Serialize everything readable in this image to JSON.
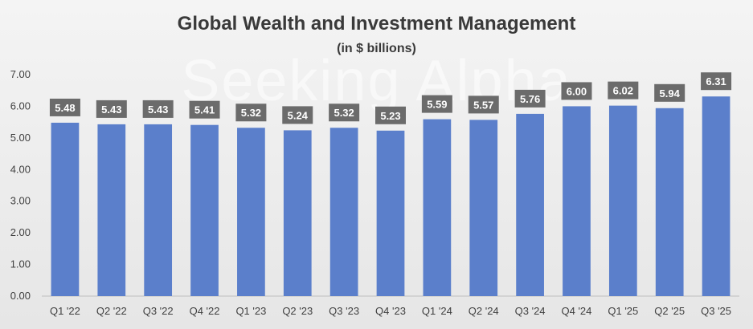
{
  "watermark": "Seeking Alpha",
  "chart_data": {
    "type": "bar",
    "title": "Global Wealth and Investment Management",
    "subtitle": "(in $ billions)",
    "xlabel": "",
    "ylabel": "",
    "categories": [
      "Q1 '22",
      "Q2 '22",
      "Q3 '22",
      "Q4 '22",
      "Q1 '23",
      "Q2 '23",
      "Q3 '23",
      "Q4 '23",
      "Q1 '24",
      "Q2 '24",
      "Q3 '24",
      "Q4 '24",
      "Q1 '25",
      "Q2 '25",
      "Q3 '25"
    ],
    "values": [
      5.48,
      5.43,
      5.43,
      5.41,
      5.32,
      5.24,
      5.32,
      5.23,
      5.59,
      5.57,
      5.76,
      6.0,
      6.02,
      5.94,
      6.31
    ],
    "value_labels": [
      "5.48",
      "5.43",
      "5.43",
      "5.41",
      "5.32",
      "5.24",
      "5.32",
      "5.23",
      "5.59",
      "5.57",
      "5.76",
      "6.00",
      "6.02",
      "5.94",
      "6.31"
    ],
    "y_ticks": [
      "0.00",
      "1.00",
      "2.00",
      "3.00",
      "4.00",
      "5.00",
      "6.00",
      "7.00"
    ],
    "ylim": [
      0,
      7
    ],
    "grid": false,
    "colors": {
      "bar": "#5b7fcb",
      "label_bg": "#6b6b6b"
    }
  }
}
